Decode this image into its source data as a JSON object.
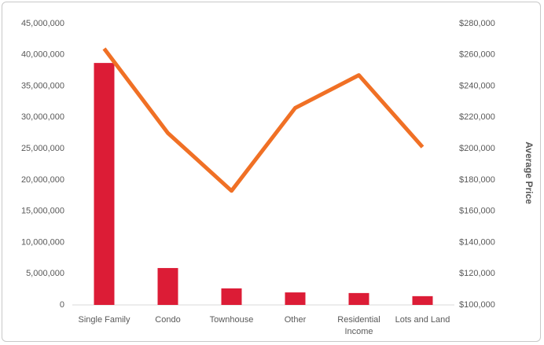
{
  "chart_data": {
    "type": "bar",
    "categories": [
      "Single Family",
      "Condo",
      "Townhouse",
      "Other",
      "Residential Income",
      "Lots and Land"
    ],
    "series": [
      {
        "type": "bar",
        "color": "#dc1c36",
        "values": [
          38700000,
          5900000,
          2640000,
          2000000,
          1900000,
          1400000
        ]
      },
      {
        "type": "line",
        "axis": "y2",
        "color": "#f07025",
        "values": [
          264000,
          210000,
          173000,
          226000,
          247000,
          201000
        ]
      }
    ],
    "ylim": [
      0,
      45000000
    ],
    "yticks": [
      0,
      {
        "value": 5000000,
        "label": "5,000,000"
      },
      {
        "value": 10000000,
        "label": "10,000,000"
      },
      {
        "value": 15000000,
        "label": "15,000,000"
      },
      {
        "value": 20000000,
        "label": "20,000,000"
      },
      {
        "value": 25000000,
        "label": "25,000,000"
      },
      {
        "value": 30000000,
        "label": "30,000,000"
      },
      {
        "value": 35000000,
        "label": "35,000,000"
      },
      {
        "value": 40000000,
        "label": "40,000,000"
      },
      {
        "value": 45000000,
        "label": "45,000,000"
      }
    ],
    "y2lim": [
      100000,
      280000
    ],
    "y2ticks": [
      {
        "value": 100000,
        "label": "$100,000"
      },
      {
        "value": 120000,
        "label": "$120,000"
      },
      {
        "value": 140000,
        "label": "$140,000"
      },
      {
        "value": 160000,
        "label": "$160,000"
      },
      {
        "value": 180000,
        "label": "$180,000"
      },
      {
        "value": 200000,
        "label": "$200,000"
      },
      {
        "value": 220000,
        "label": "$220,000"
      },
      {
        "value": 240000,
        "label": "$240,000"
      },
      {
        "value": 260000,
        "label": "$260,000"
      },
      {
        "value": 280000,
        "label": "$280,000"
      }
    ],
    "y2label": "Average Price",
    "grid": false
  }
}
